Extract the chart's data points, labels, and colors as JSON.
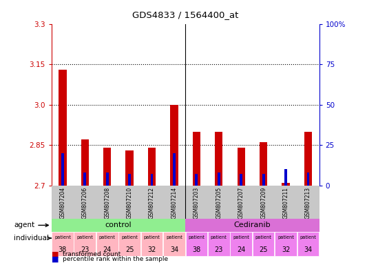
{
  "title": "GDS4833 / 1564400_at",
  "samples": [
    "GSM807204",
    "GSM807206",
    "GSM807208",
    "GSM807210",
    "GSM807212",
    "GSM807214",
    "GSM807203",
    "GSM807205",
    "GSM807207",
    "GSM807209",
    "GSM807211",
    "GSM807213"
  ],
  "red_values": [
    3.13,
    2.87,
    2.84,
    2.83,
    2.84,
    3.0,
    2.9,
    2.9,
    2.84,
    2.86,
    2.71,
    2.9
  ],
  "blue_percentile": [
    20,
    8,
    8,
    7,
    7,
    20,
    7,
    8,
    7,
    7,
    10,
    8
  ],
  "ymin": 2.7,
  "ymax": 3.3,
  "yticks": [
    2.7,
    2.85,
    3.0,
    3.15,
    3.3
  ],
  "y2min": 0,
  "y2max": 100,
  "y2ticks": [
    0,
    25,
    50,
    75,
    100
  ],
  "individuals": [
    "38",
    "23",
    "24",
    "25",
    "32",
    "34",
    "38",
    "23",
    "24",
    "25",
    "32",
    "34"
  ],
  "control_color": "#90EE90",
  "cediranib_color": "#DA70D6",
  "individual_control_color": "#FFB6C1",
  "individual_cediranib_color": "#EE82EE",
  "bar_color_red": "#CC0000",
  "bar_color_blue": "#0000CC",
  "bar_width": 0.35,
  "blue_bar_width": 0.12,
  "tick_color_left": "#CC0000",
  "tick_color_right": "#0000CC",
  "dotted_lines": [
    2.85,
    3.0,
    3.15
  ],
  "gray_bg": "#C8C8C8"
}
